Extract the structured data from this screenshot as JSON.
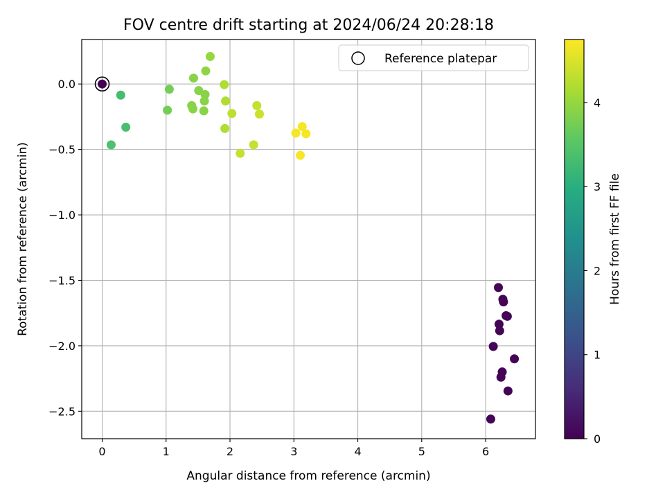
{
  "chart_data": {
    "type": "scatter",
    "title": "FOV centre drift starting at 2024/06/24 20:28:18",
    "xlabel": "Angular distance from reference (arcmin)",
    "ylabel": "Rotation from reference (arcmin)",
    "xlim": [
      -0.32,
      6.78
    ],
    "ylim": [
      -2.71,
      0.34
    ],
    "xticks": [
      "0",
      "1",
      "2",
      "3",
      "4",
      "5",
      "6"
    ],
    "xtick_values": [
      0,
      1,
      2,
      3,
      4,
      5,
      6
    ],
    "yticks": [
      "0.0",
      "−0.5",
      "−1.0",
      "−1.5",
      "−2.0",
      "−2.5"
    ],
    "ytick_values": [
      0.0,
      -0.5,
      -1.0,
      -1.5,
      -2.0,
      -2.5
    ],
    "grid": true,
    "legend_position": "top-right",
    "legend": [
      "Reference platepar"
    ],
    "colorbar": {
      "label": "Hours from first FF file",
      "range": [
        0,
        4.75
      ],
      "colormap": "viridis",
      "ticks": [
        "0",
        "1",
        "2",
        "3",
        "4"
      ],
      "tick_values": [
        0,
        1,
        2,
        3,
        4
      ]
    },
    "reference_point": {
      "x": 0,
      "y": 0
    },
    "points": [
      {
        "x": 0.0,
        "y": 0.0,
        "hours": 0.0
      },
      {
        "x": 0.29,
        "y": -0.085,
        "hours": 3.3
      },
      {
        "x": 0.37,
        "y": -0.33,
        "hours": 3.35
      },
      {
        "x": 0.14,
        "y": -0.465,
        "hours": 3.4
      },
      {
        "x": 1.05,
        "y": -0.04,
        "hours": 3.75
      },
      {
        "x": 1.02,
        "y": -0.2,
        "hours": 3.75
      },
      {
        "x": 1.43,
        "y": 0.045,
        "hours": 3.9
      },
      {
        "x": 1.51,
        "y": -0.05,
        "hours": 3.9
      },
      {
        "x": 1.62,
        "y": 0.1,
        "hours": 3.95
      },
      {
        "x": 1.69,
        "y": 0.21,
        "hours": 4.0
      },
      {
        "x": 1.61,
        "y": -0.08,
        "hours": 3.9
      },
      {
        "x": 1.6,
        "y": -0.13,
        "hours": 3.9
      },
      {
        "x": 1.4,
        "y": -0.165,
        "hours": 3.9
      },
      {
        "x": 1.42,
        "y": -0.19,
        "hours": 3.9
      },
      {
        "x": 1.59,
        "y": -0.205,
        "hours": 3.9
      },
      {
        "x": 1.91,
        "y": -0.005,
        "hours": 4.2
      },
      {
        "x": 1.93,
        "y": -0.13,
        "hours": 4.2
      },
      {
        "x": 2.03,
        "y": -0.225,
        "hours": 4.3
      },
      {
        "x": 1.92,
        "y": -0.34,
        "hours": 4.2
      },
      {
        "x": 2.16,
        "y": -0.53,
        "hours": 4.35
      },
      {
        "x": 2.42,
        "y": -0.165,
        "hours": 4.35
      },
      {
        "x": 2.46,
        "y": -0.23,
        "hours": 4.4
      },
      {
        "x": 2.37,
        "y": -0.465,
        "hours": 4.35
      },
      {
        "x": 3.13,
        "y": -0.325,
        "hours": 4.7
      },
      {
        "x": 3.03,
        "y": -0.375,
        "hours": 4.7
      },
      {
        "x": 3.19,
        "y": -0.38,
        "hours": 4.7
      },
      {
        "x": 3.1,
        "y": -0.545,
        "hours": 4.7
      },
      {
        "x": 6.2,
        "y": -1.555,
        "hours": 0.05
      },
      {
        "x": 6.27,
        "y": -1.645,
        "hours": 0.05
      },
      {
        "x": 6.28,
        "y": -1.665,
        "hours": 0.05
      },
      {
        "x": 6.32,
        "y": -1.77,
        "hours": 0.05
      },
      {
        "x": 6.34,
        "y": -1.775,
        "hours": 0.05
      },
      {
        "x": 6.21,
        "y": -1.835,
        "hours": 0.05
      },
      {
        "x": 6.22,
        "y": -1.885,
        "hours": 0.05
      },
      {
        "x": 6.12,
        "y": -2.005,
        "hours": 0.05
      },
      {
        "x": 6.45,
        "y": -2.1,
        "hours": 0.05
      },
      {
        "x": 6.26,
        "y": -2.2,
        "hours": 0.05
      },
      {
        "x": 6.24,
        "y": -2.24,
        "hours": 0.05
      },
      {
        "x": 6.35,
        "y": -2.345,
        "hours": 0.05
      },
      {
        "x": 6.08,
        "y": -2.56,
        "hours": 0.05
      }
    ]
  }
}
